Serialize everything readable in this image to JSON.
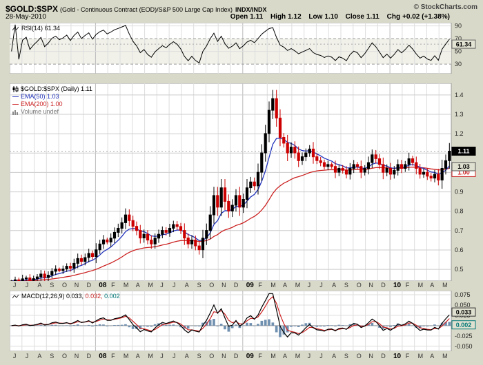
{
  "header": {
    "symbol": "$GOLD:$SPX",
    "description": "(Gold - Continuous Contract (EOD)/S&P 500 Large Cap Index)",
    "exchange": "INDX/INDX",
    "copyright": "© StockCharts.com",
    "date": "28-May-2010",
    "quote": [
      {
        "label": "Open",
        "value": "1.11"
      },
      {
        "label": "High",
        "value": "1.12"
      },
      {
        "label": "Low",
        "value": "1.10"
      },
      {
        "label": "Close",
        "value": "1.11"
      },
      {
        "label": "Chg",
        "value": "+0.02 (+1.38%)"
      }
    ]
  },
  "panels": {
    "rsi": {
      "label": "RSI(14) 61.34",
      "badge": "61.34"
    },
    "price": {
      "legend": {
        "series": "$GOLD:$SPX (Daily) 1.11",
        "ema50": "EMA(50) 1.03",
        "ema200": "EMA(200) 1.00",
        "volume": "Volume undef"
      },
      "badges": {
        "last": "1.11",
        "ema50": "1.03",
        "ema200": "1.00"
      }
    },
    "macd": {
      "label_main": "MACD(12,26,9) 0.033,",
      "label_signal": "0.032,",
      "label_hist": "0.002",
      "badges": {
        "macd": "0.033",
        "hist": "0.002"
      }
    }
  },
  "chart_data": {
    "type": "candlestick",
    "title": "$GOLD:$SPX Daily ratio with RSI(14), EMA(50), EMA(200), MACD(12,26,9)",
    "x_labels": [
      "J",
      "J",
      "A",
      "S",
      "O",
      "N",
      "D",
      "08",
      "F",
      "M",
      "A",
      "M",
      "J",
      "J",
      "A",
      "S",
      "O",
      "N",
      "D",
      "09",
      "F",
      "M",
      "A",
      "M",
      "J",
      "J",
      "A",
      "S",
      "O",
      "N",
      "D",
      "10",
      "F",
      "M",
      "A",
      "M"
    ],
    "year_boundary_indices": [
      7,
      19,
      31
    ],
    "close": [
      0.44,
      0.446,
      0.436,
      0.451,
      0.456,
      0.443,
      0.452,
      0.461,
      0.476,
      0.458,
      0.47,
      0.49,
      0.501,
      0.494,
      0.502,
      0.516,
      0.506,
      0.531,
      0.556,
      0.541,
      0.561,
      0.582,
      0.566,
      0.601,
      0.631,
      0.652,
      0.641,
      0.661,
      0.691,
      0.712,
      0.741,
      0.781,
      0.752,
      0.722,
      0.701,
      0.662,
      0.681,
      0.651,
      0.631,
      0.661,
      0.681,
      0.701,
      0.691,
      0.712,
      0.731,
      0.721,
      0.701,
      0.662,
      0.631,
      0.651,
      0.621,
      0.601,
      0.661,
      0.701,
      0.781,
      0.881,
      0.821,
      0.921,
      0.851,
      0.801,
      0.831,
      0.881,
      0.821,
      0.861,
      0.921,
      0.951,
      0.931,
      1.001,
      1.101,
      1.201,
      1.321,
      1.381,
      1.281,
      1.181,
      1.151,
      1.101,
      1.131,
      1.101,
      1.061,
      1.081,
      1.101,
      1.121,
      1.081,
      1.061,
      1.051,
      1.031,
      1.041,
      1.031,
      1.001,
      1.021,
      1.011,
      0.991,
      1.021,
      1.041,
      1.031,
      1.001,
      1.021,
      1.051,
      1.091,
      1.071,
      1.041,
      1.001,
      1.021,
      0.991,
      1.011,
      1.041,
      1.021,
      1.041,
      1.071,
      1.051,
      1.021,
      0.991,
      1.001,
      0.981,
      0.971,
      0.991,
      0.961,
      1.021,
      1.061,
      1.11
    ],
    "price_axis": {
      "min": 0.44,
      "max": 1.46,
      "ticks": [
        1.4,
        1.3,
        1.2,
        1.1,
        1.0,
        0.9,
        0.8,
        0.7,
        0.6,
        0.5
      ]
    },
    "rsi_axis": {
      "min": 15,
      "max": 95,
      "ticks": [
        90,
        70,
        50,
        30
      ],
      "overbought": 70,
      "oversold": 30,
      "last": 61.34
    },
    "macd_axis": {
      "min": -0.062,
      "max": 0.085,
      "ticks": [
        {
          "v": 0.075,
          "t": "0.075"
        },
        {
          "v": 0.05,
          "t": "0.050"
        },
        {
          "v": 0.025,
          "t": "0.025"
        },
        {
          "v": -0.025,
          "t": "-0.025"
        },
        {
          "v": -0.05,
          "t": "-0.050"
        }
      ],
      "last_macd": 0.033,
      "last_signal": 0.032,
      "last_hist": 0.002
    },
    "last_values": {
      "close": 1.11,
      "ema50": 1.03,
      "ema200": 1.0
    },
    "colors": {
      "ema50": "#2233bb",
      "ema200": "#cc2222",
      "candle_up": "#000000",
      "candle_down": "#cc0000",
      "rsi_line": "#000000",
      "macd_line": "#000000",
      "macd_signal": "#cc2222",
      "macd_hist": "#7090b0",
      "grid": "#dddddd",
      "grid_year": "#bbbbbb",
      "panel_border": "#999999"
    }
  }
}
